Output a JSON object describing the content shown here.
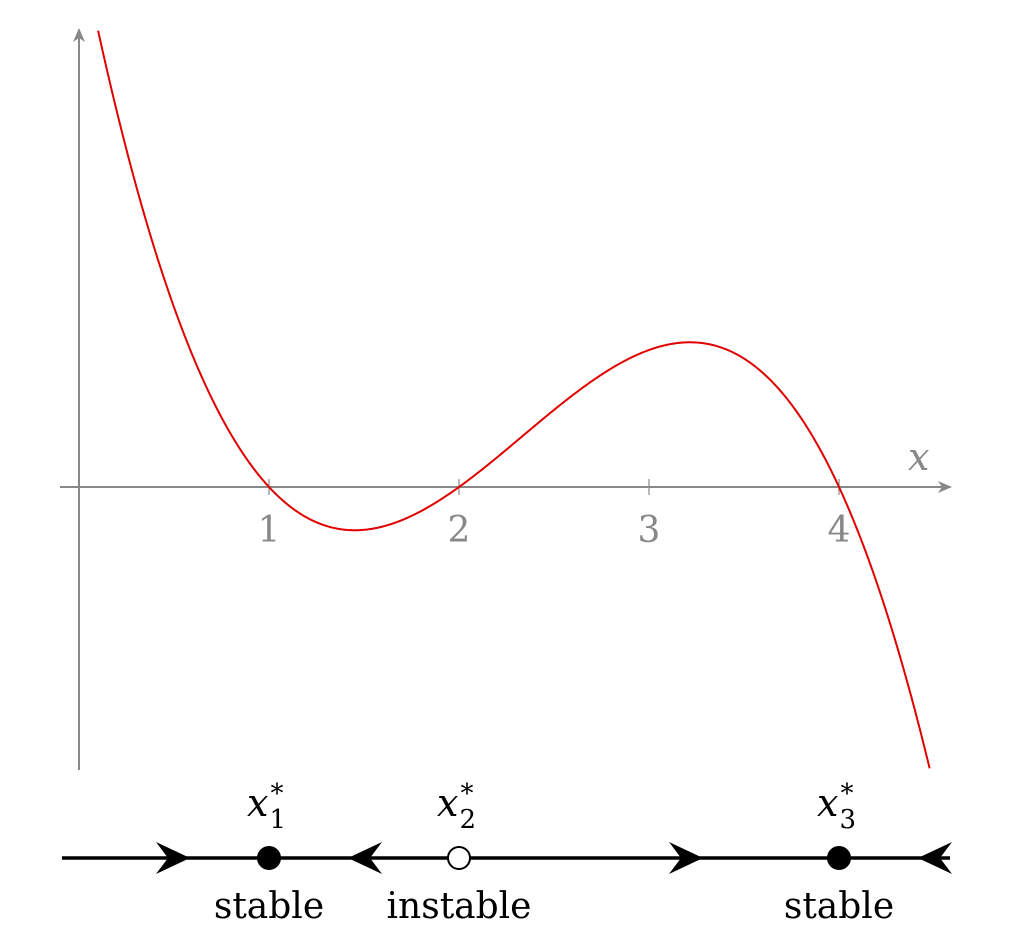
{
  "plot": {
    "x_axis_label": "x",
    "x_ticks": [
      {
        "value": 1,
        "label": "1"
      },
      {
        "value": 2,
        "label": "2"
      },
      {
        "value": 3,
        "label": "3"
      },
      {
        "value": 4,
        "label": "4"
      }
    ],
    "curve_color": "#e00000",
    "axis_color": "#888888",
    "roots": [
      1,
      2,
      4
    ],
    "function": "-(x-1)(x-2)(x-4)"
  },
  "phase_line": {
    "fixed_points": [
      {
        "x": 1,
        "symbol": "x",
        "superscript": "*",
        "subscript": "1",
        "status": "stable",
        "filled": true
      },
      {
        "x": 2,
        "symbol": "x",
        "superscript": "*",
        "subscript": "2",
        "status": "instable",
        "filled": false
      },
      {
        "x": 4,
        "symbol": "x",
        "superscript": "*",
        "subscript": "3",
        "status": "stable",
        "filled": true
      }
    ],
    "arrows": [
      {
        "x": 0.5,
        "direction": "right"
      },
      {
        "x": 1.5,
        "direction": "left"
      },
      {
        "x": 3.2,
        "direction": "right"
      },
      {
        "x": 4.5,
        "direction": "left"
      }
    ]
  }
}
